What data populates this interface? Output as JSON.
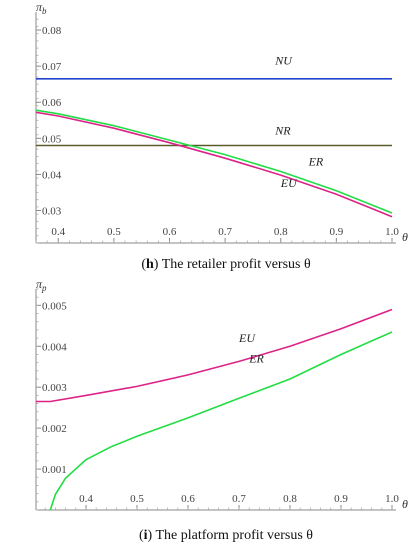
{
  "chart_data": [
    {
      "type": "line",
      "caption_letter": "h",
      "caption_text": "The retailer profit versus θ",
      "xlabel": "θ",
      "ylabel": "πb",
      "xlim": [
        0.36,
        1.0
      ],
      "ylim": [
        0.021,
        0.085
      ],
      "xticks": [
        0.4,
        0.5,
        0.6,
        0.7,
        0.8,
        0.9,
        1.0
      ],
      "xtick_labels": [
        "0.4",
        "0.5",
        "0.6",
        "0.7",
        "0.8",
        "0.9",
        "1.0"
      ],
      "yticks": [
        0.03,
        0.04,
        0.05,
        0.06,
        0.07,
        0.08
      ],
      "ytick_labels": [
        "0.03",
        "0.04",
        "0.05",
        "0.06",
        "0.07",
        "0.08"
      ],
      "series": [
        {
          "name": "NU",
          "color": "#2244cc",
          "x": [
            0.36,
            1.0
          ],
          "y": [
            0.0665,
            0.0665
          ]
        },
        {
          "name": "NR",
          "color": "#5a5a2a",
          "x": [
            0.36,
            1.0
          ],
          "y": [
            0.048,
            0.048
          ]
        },
        {
          "name": "ER",
          "color": "#22dd44",
          "x": [
            0.36,
            0.4,
            0.5,
            0.6,
            0.7,
            0.8,
            0.9,
            1.0
          ],
          "y": [
            0.0578,
            0.0568,
            0.0535,
            0.0495,
            0.0455,
            0.0408,
            0.0355,
            0.0293
          ]
        },
        {
          "name": "EU",
          "color": "#dd2288",
          "x": [
            0.36,
            0.4,
            0.5,
            0.6,
            0.7,
            0.8,
            0.9,
            1.0
          ],
          "y": [
            0.0572,
            0.0562,
            0.0528,
            0.0488,
            0.0445,
            0.0398,
            0.0345,
            0.0283
          ]
        }
      ],
      "annotations": [
        {
          "text": "NU",
          "x": 0.79,
          "y": 0.0705
        },
        {
          "text": "NR",
          "x": 0.79,
          "y": 0.051
        },
        {
          "text": "ER",
          "x": 0.85,
          "y": 0.0425
        },
        {
          "text": "EU",
          "x": 0.8,
          "y": 0.0365
        }
      ]
    },
    {
      "type": "line",
      "caption_letter": "i",
      "caption_text": "The platform profit versus θ",
      "xlabel": "θ",
      "ylabel": "πp",
      "xlim": [
        0.302,
        1.0
      ],
      "ylim": [
        0.0,
        0.0054
      ],
      "xticks": [
        0.4,
        0.5,
        0.6,
        0.7,
        0.8,
        0.9,
        1.0
      ],
      "xtick_labels": [
        "0.4",
        "0.5",
        "0.6",
        "0.7",
        "0.8",
        "0.9",
        "1.0"
      ],
      "yticks": [
        0.001,
        0.002,
        0.003,
        0.004,
        0.005
      ],
      "ytick_labels": [
        "0.001",
        "0.002",
        "0.003",
        "0.004",
        "0.005"
      ],
      "series": [
        {
          "name": "EU",
          "color": "#dd2288",
          "x": [
            0.302,
            0.33,
            0.4,
            0.5,
            0.6,
            0.7,
            0.8,
            0.9,
            1.0
          ],
          "y": [
            0.00265,
            0.00265,
            0.0028,
            0.00302,
            0.0033,
            0.00363,
            0.004,
            0.00443,
            0.0049
          ]
        },
        {
          "name": "ER",
          "color": "#22dd44",
          "x": [
            0.33,
            0.34,
            0.36,
            0.4,
            0.45,
            0.5,
            0.6,
            0.7,
            0.8,
            0.9,
            1.0
          ],
          "y": [
            0.0,
            0.00038,
            0.00078,
            0.00123,
            0.00155,
            0.0018,
            0.00225,
            0.00273,
            0.0032,
            0.0038,
            0.00435
          ]
        }
      ],
      "annotations": [
        {
          "text": "EU",
          "x": 0.7,
          "y": 0.0041
        },
        {
          "text": "ER",
          "x": 0.72,
          "y": 0.0036
        }
      ]
    }
  ]
}
